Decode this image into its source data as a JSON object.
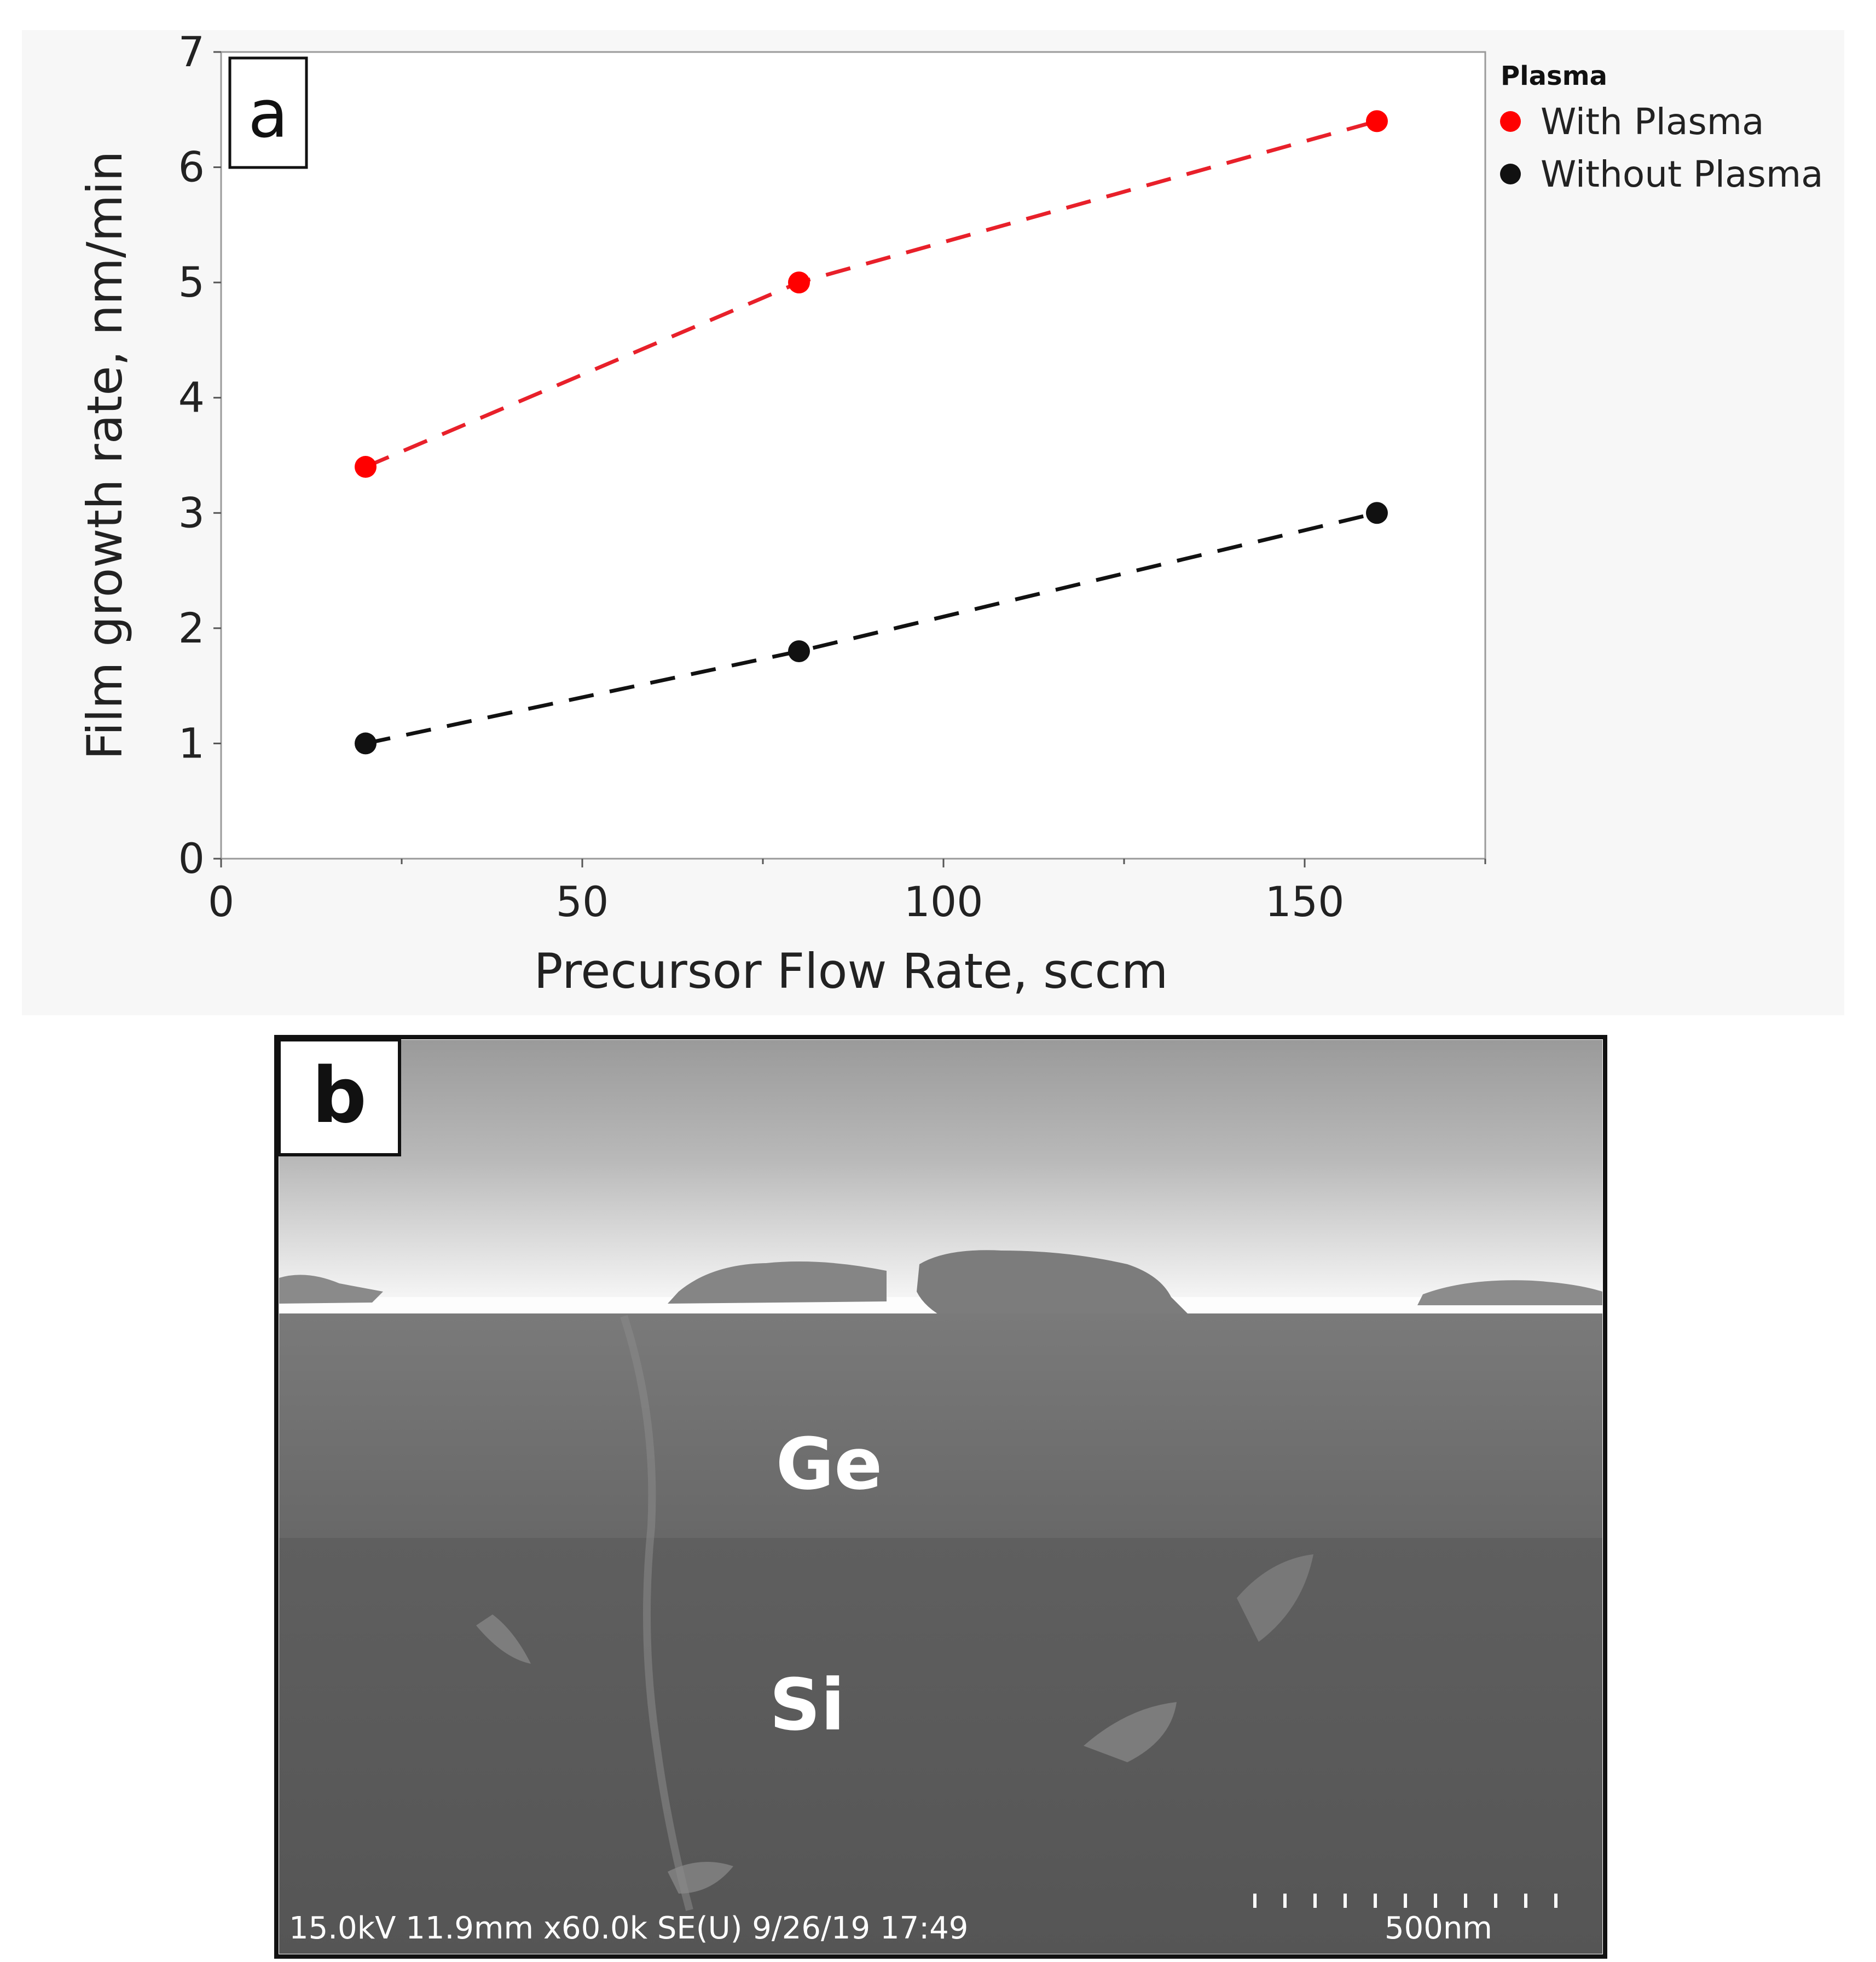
{
  "panel_a": {
    "label": "a"
  },
  "panel_b": {
    "label": "b",
    "region_top_label": "Ge",
    "region_bottom_label": "Si",
    "sem_info": "15.0kV 11.9mm x60.0k SE(U) 9/26/19 17:49",
    "scale_bar_label": "500nm"
  },
  "chart_data": {
    "type": "scatter",
    "title": "",
    "xlabel": "Precursor Flow Rate, sccm",
    "ylabel": "Film growth rate, nm/min",
    "xlim": [
      0,
      175
    ],
    "ylim": [
      0,
      7
    ],
    "x_ticks": [
      0,
      50,
      100,
      150
    ],
    "y_ticks": [
      0,
      1,
      2,
      3,
      4,
      5,
      6,
      7
    ],
    "grid": false,
    "legend": {
      "title": "Plasma",
      "position": "right"
    },
    "series": [
      {
        "name": "With Plasma",
        "color": "#ff0000",
        "line_color": "#e8202a",
        "line_style": "dashed",
        "x": [
          20,
          80,
          160
        ],
        "y": [
          3.4,
          5.0,
          6.4
        ]
      },
      {
        "name": "Without Plasma",
        "color": "#111111",
        "line_color": "#111111",
        "line_style": "dashed",
        "x": [
          20,
          80,
          160
        ],
        "y": [
          1.0,
          1.8,
          3.0
        ]
      }
    ]
  }
}
